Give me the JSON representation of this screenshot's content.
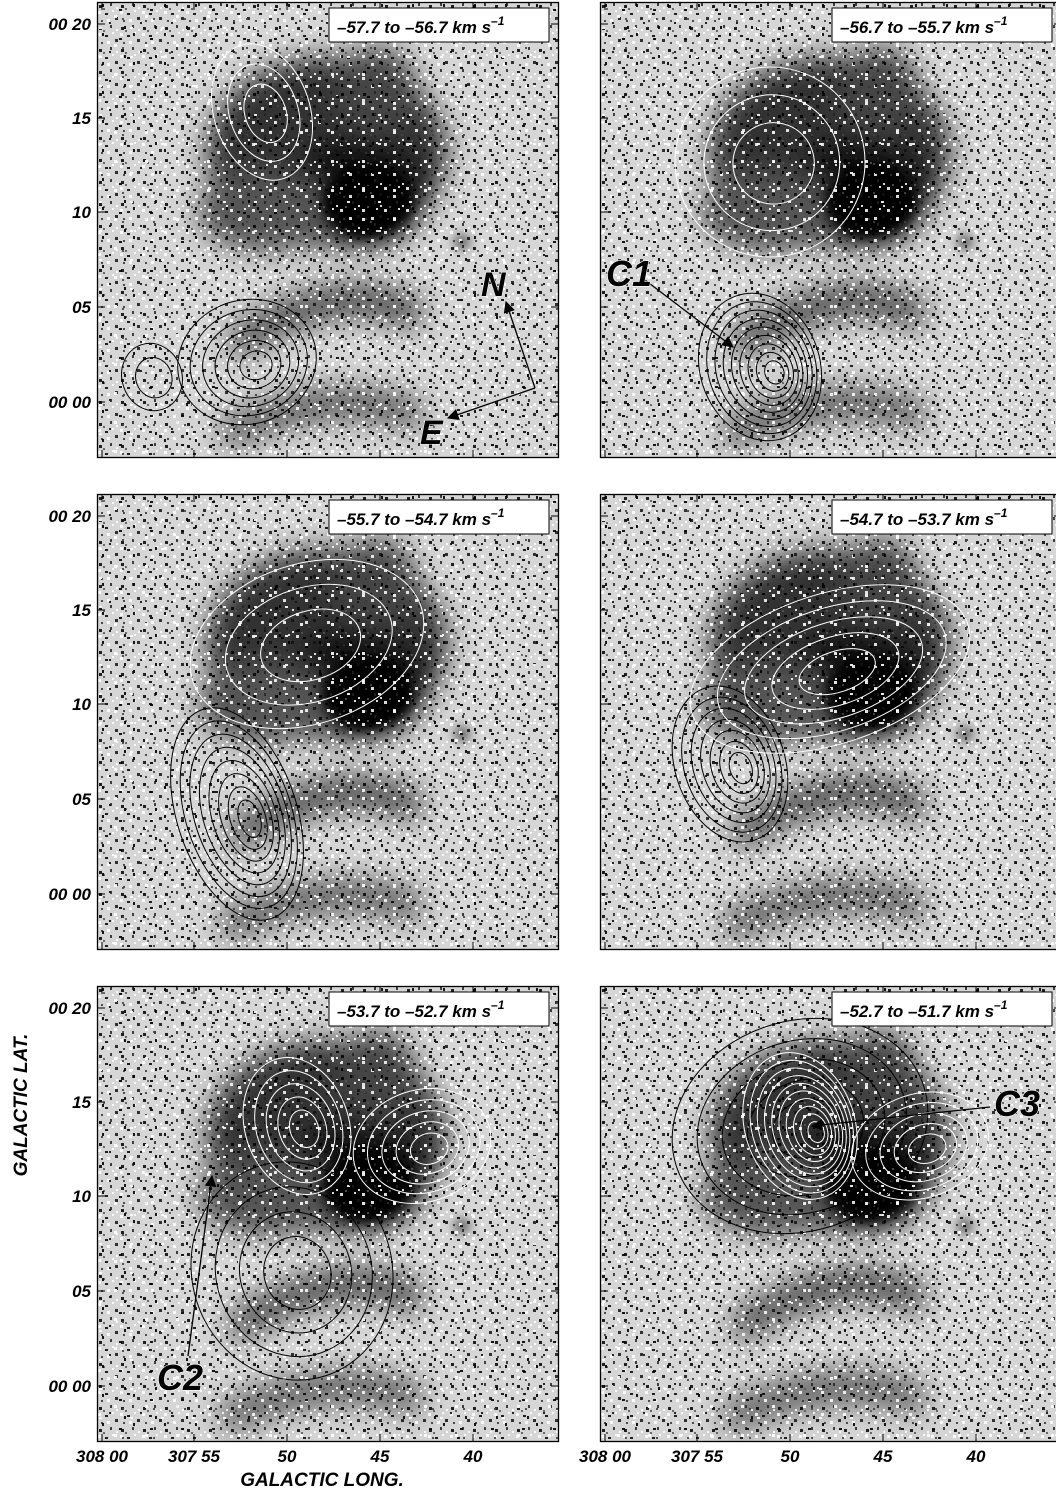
{
  "panels": [
    {
      "velocity": "–57.7 to –56.7 km s",
      "superscript": "–1"
    },
    {
      "velocity": "–56.7 to –55.7 km s",
      "superscript": "–1"
    },
    {
      "velocity": "–55.7 to –54.7 km s",
      "superscript": "–1"
    },
    {
      "velocity": "–54.7 to –53.7 km s",
      "superscript": "–1"
    },
    {
      "velocity": "–53.7 to –52.7 km s",
      "superscript": "–1"
    },
    {
      "velocity": "–52.7 to –51.7 km s",
      "superscript": "–1"
    }
  ],
  "y_tick_labels": [
    "00 20",
    "15",
    "10",
    "05",
    "00 00"
  ],
  "x_tick_labels": [
    "308 00",
    "307 55",
    "50",
    "45",
    "40"
  ],
  "axes": {
    "ylabel": "GALACTIC LAT.",
    "xlabel": "GALACTIC LONG."
  },
  "annotations": {
    "c1": "C1",
    "c2": "C2",
    "c3": "C3",
    "north": "N",
    "east": "E"
  },
  "colors": {
    "background": "#ffffff",
    "nebula_dark": "#111111",
    "contour_dark": "#000000",
    "contour_light": "#ffffff"
  }
}
